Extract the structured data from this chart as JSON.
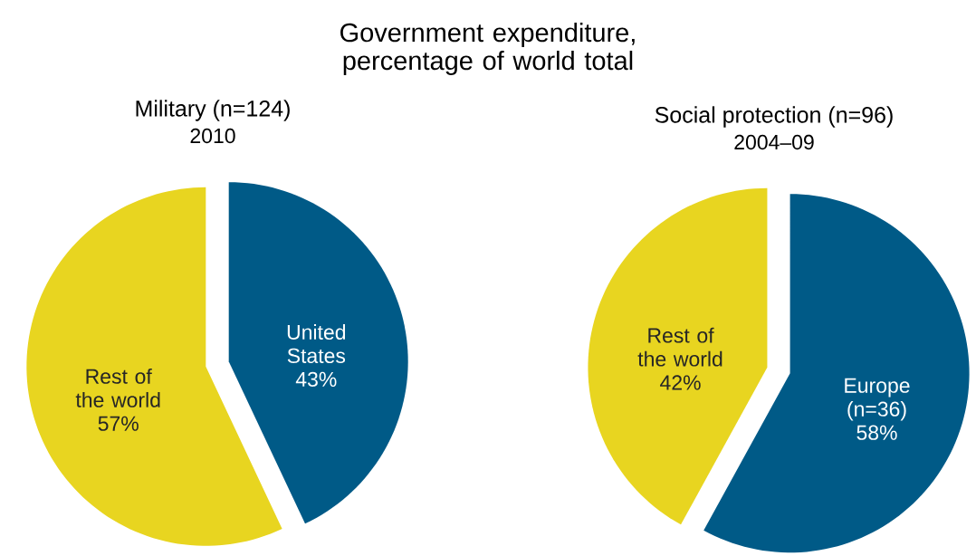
{
  "chart_data": [
    {
      "type": "other",
      "title": "Government expenditure, percentage of world total"
    },
    {
      "type": "pie",
      "title": "Military (n=124)",
      "subtitle": "2010",
      "categories": [
        "United States",
        "Rest of the world"
      ],
      "values": [
        43,
        57
      ],
      "value_labels": [
        "43%",
        "57%"
      ],
      "colors": [
        "#005a87",
        "#e8d520"
      ]
    },
    {
      "type": "pie",
      "title": "Social protection (n=96)",
      "subtitle": "2004–09",
      "categories": [
        "Europe (n=36)",
        "Rest of the world"
      ],
      "values": [
        58,
        42
      ],
      "value_labels": [
        "58%",
        "42%"
      ],
      "colors": [
        "#005a87",
        "#e8d520"
      ]
    }
  ]
}
